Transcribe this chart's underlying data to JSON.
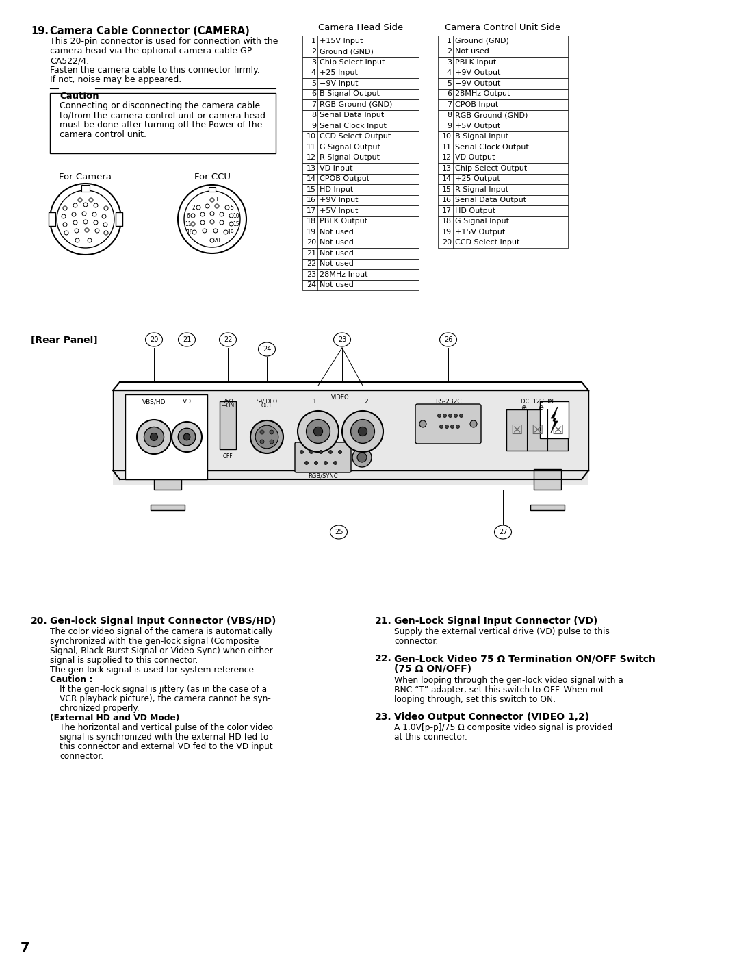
{
  "bg_color": "#ffffff",
  "page_number": "7",
  "sec19_num": "19.",
  "sec19_title": "Camera Cable Connector (CAMERA)",
  "sec19_body": [
    "This 20-pin connector is used for connection with the",
    "camera head via the optional camera cable GP-",
    "CA522/4.",
    "Fasten the camera cable to this connector firmly.",
    "If not, noise may be appeared."
  ],
  "caution_title": "Caution",
  "caution_lines": [
    "Connecting or disconnecting the camera cable",
    "to/from the camera control unit or camera head",
    "must be done after turning off the Power of the",
    "camera control unit."
  ],
  "for_camera": "For Camera",
  "for_ccu": "For CCU",
  "camera_head_side": "Camera Head Side",
  "camera_control_side": "Camera Control Unit Side",
  "camera_head_pins": [
    [
      1,
      "+15V Input"
    ],
    [
      2,
      "Ground (GND)"
    ],
    [
      3,
      "Chip Select Input"
    ],
    [
      4,
      "+25 Input"
    ],
    [
      5,
      "−9V Input"
    ],
    [
      6,
      "B Signal Output"
    ],
    [
      7,
      "RGB Ground (GND)"
    ],
    [
      8,
      "Serial Data Input"
    ],
    [
      9,
      "Serial Clock Input"
    ],
    [
      10,
      "CCD Select Output"
    ],
    [
      11,
      "G Signal Output"
    ],
    [
      12,
      "R Signal Output"
    ],
    [
      13,
      "VD Input"
    ],
    [
      14,
      "CPOB Output"
    ],
    [
      15,
      "HD Input"
    ],
    [
      16,
      "+9V Input"
    ],
    [
      17,
      "+5V Input"
    ],
    [
      18,
      "PBLK Output"
    ],
    [
      19,
      "Not used"
    ],
    [
      20,
      "Not used"
    ],
    [
      21,
      "Not used"
    ],
    [
      22,
      "Not used"
    ],
    [
      23,
      "28MHz Input"
    ],
    [
      24,
      "Not used"
    ]
  ],
  "ccu_pins": [
    [
      1,
      "Ground (GND)"
    ],
    [
      2,
      "Not used"
    ],
    [
      3,
      "PBLK Input"
    ],
    [
      4,
      "+9V Output"
    ],
    [
      5,
      "−9V Output"
    ],
    [
      6,
      "28MHz Output"
    ],
    [
      7,
      "CPOB Input"
    ],
    [
      8,
      "RGB Ground (GND)"
    ],
    [
      9,
      "+5V Output"
    ],
    [
      10,
      "B Signal Input"
    ],
    [
      11,
      "Serial Clock Output"
    ],
    [
      12,
      "VD Output"
    ],
    [
      13,
      "Chip Select Output"
    ],
    [
      14,
      "+25 Output"
    ],
    [
      15,
      "R Signal Input"
    ],
    [
      16,
      "Serial Data Output"
    ],
    [
      17,
      "HD Output"
    ],
    [
      18,
      "G Signal Input"
    ],
    [
      19,
      "+15V Output"
    ],
    [
      20,
      "CCD Select Input"
    ]
  ],
  "rear_panel": "[Rear Panel]",
  "sec20_num": "20.",
  "sec20_title": "Gen-lock Signal Input Connector (VBS/HD)",
  "sec20_lines": [
    [
      "The color video signal of the camera is automatically",
      "normal"
    ],
    [
      "synchronized with the gen-lock signal (Composite",
      "normal"
    ],
    [
      "Signal, Black Burst Signal or Video Sync) when either",
      "normal"
    ],
    [
      "signal is supplied to this connector.",
      "normal"
    ],
    [
      "The gen-lock signal is used for system reference.",
      "normal"
    ],
    [
      "Caution :",
      "bold"
    ],
    [
      "If the gen-lock signal is jittery (as in the case of a",
      "normal"
    ],
    [
      "VCR playback picture), the camera cannot be syn-",
      "normal"
    ],
    [
      "chronized properly.",
      "normal"
    ],
    [
      "(External HD and VD Mode)",
      "bold"
    ],
    [
      "The horizontal and vertical pulse of the color video",
      "normal"
    ],
    [
      "signal is synchronized with the external HD fed to",
      "normal"
    ],
    [
      "this connector and external VD fed to the VD input",
      "normal"
    ],
    [
      "connector.",
      "normal"
    ]
  ],
  "sec21_num": "21.",
  "sec21_title": "Gen-Lock Signal Input Connector (VD)",
  "sec21_lines": [
    "Supply the external vertical drive (VD) pulse to this",
    "connector."
  ],
  "sec22_num": "22.",
  "sec22_title": "Gen-Lock Video 75 Ω Termination ON/OFF Switch",
  "sec22_subtitle": "(75 Ω ON/OFF)",
  "sec22_lines": [
    "When looping through the gen-lock video signal with a",
    "BNC “T” adapter, set this switch to OFF. When not",
    "looping through, set this switch to ON."
  ],
  "sec23_num": "23.",
  "sec23_title": "Video Output Connector (VIDEO 1,2)",
  "sec23_lines": [
    "A 1.0V[p-p]/75 Ω composite video signal is provided",
    "at this connector."
  ]
}
